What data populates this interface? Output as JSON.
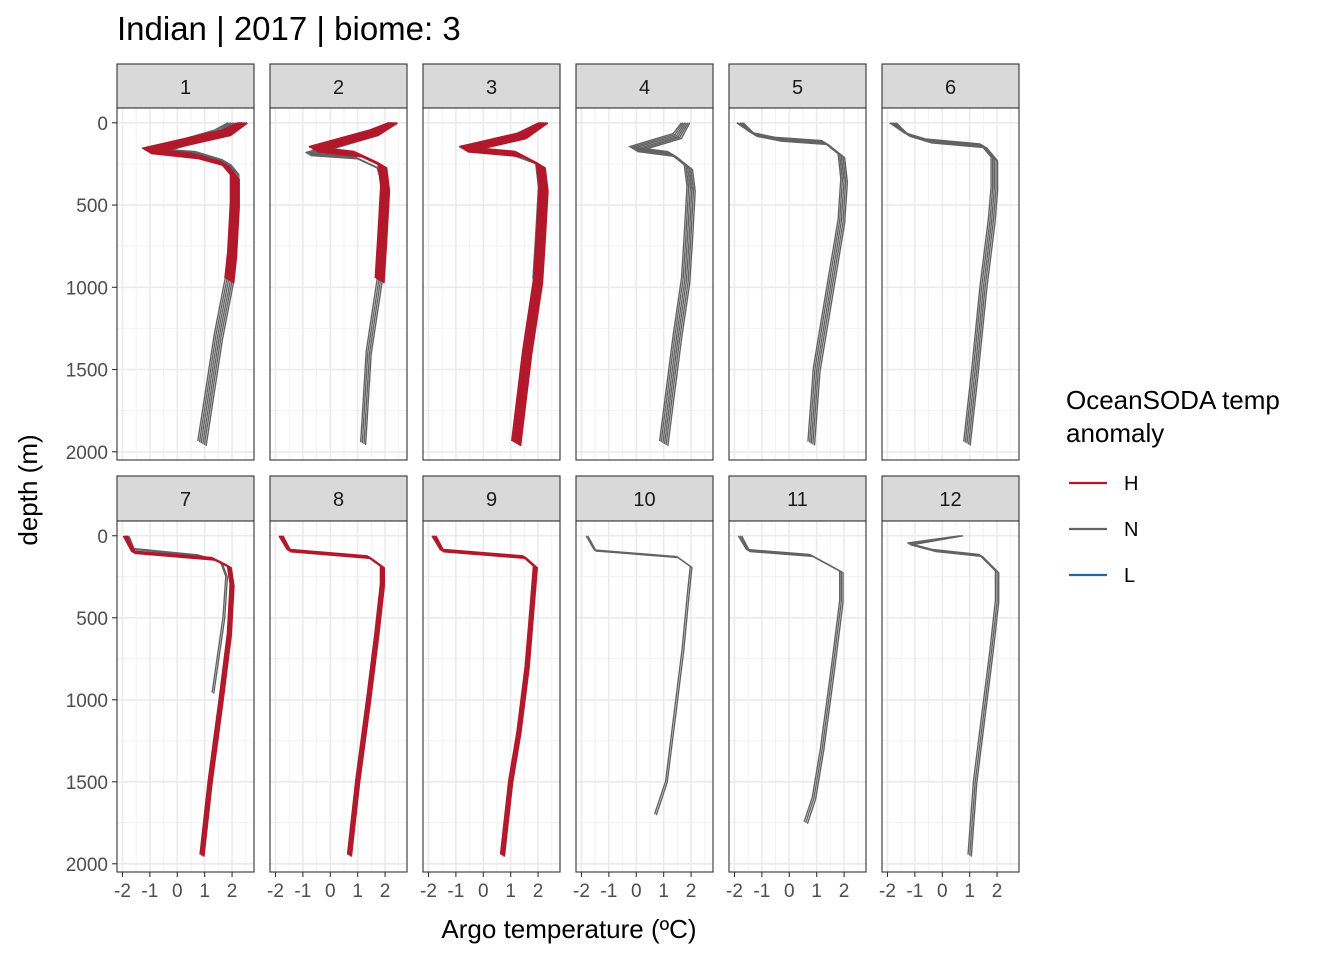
{
  "chart_data": {
    "type": "line",
    "title": "Indian | 2017 | biome: 3",
    "xlabel": "Argo temperature (ºC)",
    "ylabel": "depth (m)",
    "xlim": [
      -2.2,
      2.8
    ],
    "ylim": [
      2050,
      -90
    ],
    "y_reversed": true,
    "x_ticks": [
      -2,
      -1,
      0,
      1,
      2
    ],
    "x_tick_labels": [
      "-2",
      "-1",
      "0",
      "1",
      "2"
    ],
    "y_ticks": [
      0,
      500,
      1000,
      1500,
      2000
    ],
    "y_tick_labels": [
      "0",
      "500",
      "1000",
      "1500",
      "2000"
    ],
    "grid": true,
    "legend": {
      "title": [
        "OceanSODA temp",
        "anomaly"
      ],
      "placement": "right",
      "entries": [
        {
          "label": "H",
          "color": "#b2182b"
        },
        {
          "label": "N",
          "color": "#636363"
        },
        {
          "label": "L",
          "color": "#2166ac"
        }
      ]
    },
    "colors": {
      "H": "#b2182b",
      "N": "#636363",
      "L": "#2166ac"
    },
    "panels": [
      {
        "label": "1",
        "series": [
          {
            "anomaly": "N",
            "count": 10,
            "points": [
              [
                2.0,
                0
              ],
              [
                1.5,
                60
              ],
              [
                -0.8,
                170
              ],
              [
                0.8,
                190
              ],
              [
                1.8,
                240
              ],
              [
                2.1,
                300
              ],
              [
                2.1,
                500
              ],
              [
                2.0,
                800
              ],
              [
                1.9,
                960
              ],
              [
                1.5,
                1300
              ],
              [
                0.9,
                1950
              ]
            ]
          },
          {
            "anomaly": "H",
            "count": 9,
            "points": [
              [
                2.4,
                0
              ],
              [
                1.8,
                60
              ],
              [
                -1.1,
                170
              ],
              [
                0.6,
                200
              ],
              [
                1.7,
                250
              ],
              [
                2.1,
                330
              ],
              [
                2.1,
                500
              ],
              [
                2.0,
                800
              ],
              [
                1.9,
                960
              ]
            ]
          }
        ]
      },
      {
        "label": "2",
        "series": [
          {
            "anomaly": "N",
            "count": 4,
            "points": [
              [
                2.2,
                0
              ],
              [
                1.6,
                70
              ],
              [
                -0.8,
                190
              ],
              [
                0.9,
                210
              ],
              [
                1.8,
                280
              ],
              [
                2.0,
                400
              ],
              [
                1.9,
                700
              ],
              [
                1.8,
                960
              ],
              [
                1.4,
                1400
              ],
              [
                1.2,
                1950
              ]
            ]
          },
          {
            "anomaly": "H",
            "count": 6,
            "points": [
              [
                2.3,
                0
              ],
              [
                1.6,
                60
              ],
              [
                -0.6,
                160
              ],
              [
                1.0,
                190
              ],
              [
                1.9,
                260
              ],
              [
                2.0,
                400
              ],
              [
                1.9,
                700
              ],
              [
                1.8,
                960
              ]
            ]
          }
        ]
      },
      {
        "label": "3",
        "series": [
          {
            "anomaly": "N",
            "count": 4,
            "points": [
              [
                2.2,
                0
              ],
              [
                1.5,
                80
              ],
              [
                -0.7,
                150
              ],
              [
                1.0,
                190
              ],
              [
                2.0,
                250
              ],
              [
                2.1,
                400
              ],
              [
                2.0,
                700
              ],
              [
                1.9,
                960
              ]
            ]
          },
          {
            "anomaly": "H",
            "count": 12,
            "points": [
              [
                2.2,
                0
              ],
              [
                1.4,
                80
              ],
              [
                -0.7,
                160
              ],
              [
                1.3,
                190
              ],
              [
                2.1,
                260
              ],
              [
                2.2,
                400
              ],
              [
                2.1,
                700
              ],
              [
                2.0,
                960
              ],
              [
                1.6,
                1400
              ],
              [
                1.2,
                1950
              ]
            ]
          }
        ]
      },
      {
        "label": "4",
        "series": [
          {
            "anomaly": "N",
            "count": 12,
            "points": [
              [
                1.8,
                0
              ],
              [
                1.5,
                80
              ],
              [
                -0.1,
                160
              ],
              [
                1.3,
                190
              ],
              [
                1.9,
                270
              ],
              [
                2.0,
                400
              ],
              [
                1.9,
                700
              ],
              [
                1.8,
                960
              ],
              [
                1.5,
                1300
              ],
              [
                1.0,
                1950
              ]
            ]
          }
        ]
      },
      {
        "label": "5",
        "series": [
          {
            "anomaly": "N",
            "count": 5,
            "points": [
              [
                -1.8,
                0
              ],
              [
                -1.3,
                70
              ],
              [
                -0.4,
                100
              ],
              [
                1.3,
                120
              ],
              [
                1.9,
                200
              ],
              [
                2.0,
                350
              ],
              [
                1.9,
                600
              ],
              [
                1.5,
                1000
              ],
              [
                1.0,
                1500
              ],
              [
                0.8,
                1950
              ]
            ]
          }
        ]
      },
      {
        "label": "6",
        "series": [
          {
            "anomaly": "N",
            "count": 5,
            "points": [
              [
                -1.8,
                0
              ],
              [
                -1.3,
                70
              ],
              [
                -0.5,
                110
              ],
              [
                1.5,
                140
              ],
              [
                1.9,
                220
              ],
              [
                1.9,
                400
              ],
              [
                1.8,
                600
              ],
              [
                1.5,
                1000
              ],
              [
                1.2,
                1500
              ],
              [
                0.9,
                1950
              ]
            ]
          }
        ]
      },
      {
        "label": "7",
        "series": [
          {
            "anomaly": "N",
            "count": 2,
            "points": [
              [
                -1.8,
                0
              ],
              [
                -1.6,
                80
              ],
              [
                0.8,
                120
              ],
              [
                1.6,
                160
              ],
              [
                1.8,
                250
              ],
              [
                1.7,
                500
              ],
              [
                1.3,
                960
              ]
            ]
          },
          {
            "anomaly": "H",
            "count": 3,
            "points": [
              [
                -1.9,
                0
              ],
              [
                -1.6,
                100
              ],
              [
                1.3,
                140
              ],
              [
                1.9,
                190
              ],
              [
                2.0,
                300
              ],
              [
                1.9,
                600
              ],
              [
                1.6,
                1000
              ],
              [
                1.2,
                1500
              ],
              [
                0.9,
                1950
              ]
            ]
          }
        ]
      },
      {
        "label": "8",
        "series": [
          {
            "anomaly": "H",
            "count": 3,
            "points": [
              [
                -1.8,
                0
              ],
              [
                -1.5,
                90
              ],
              [
                1.4,
                130
              ],
              [
                1.9,
                190
              ],
              [
                1.9,
                300
              ],
              [
                1.7,
                600
              ],
              [
                1.4,
                1000
              ],
              [
                1.0,
                1500
              ],
              [
                0.7,
                1950
              ]
            ]
          }
        ]
      },
      {
        "label": "9",
        "series": [
          {
            "anomaly": "H",
            "count": 3,
            "points": [
              [
                -1.8,
                0
              ],
              [
                -1.5,
                90
              ],
              [
                1.5,
                130
              ],
              [
                1.9,
                190
              ],
              [
                1.8,
                400
              ],
              [
                1.6,
                800
              ],
              [
                1.3,
                1200
              ],
              [
                1.0,
                1500
              ],
              [
                0.7,
                1950
              ]
            ]
          }
        ]
      },
      {
        "label": "10",
        "series": [
          {
            "anomaly": "N",
            "count": 2,
            "points": [
              [
                -1.8,
                0
              ],
              [
                -1.5,
                90
              ],
              [
                1.5,
                130
              ],
              [
                2.0,
                190
              ],
              [
                1.9,
                350
              ],
              [
                1.7,
                700
              ],
              [
                1.4,
                1100
              ],
              [
                1.1,
                1500
              ],
              [
                0.7,
                1700
              ]
            ]
          }
        ]
      },
      {
        "label": "11",
        "series": [
          {
            "anomaly": "N",
            "count": 3,
            "points": [
              [
                -1.8,
                0
              ],
              [
                -1.5,
                90
              ],
              [
                0.8,
                120
              ],
              [
                1.9,
                220
              ],
              [
                1.9,
                400
              ],
              [
                1.6,
                800
              ],
              [
                1.2,
                1300
              ],
              [
                0.9,
                1600
              ],
              [
                0.6,
                1750
              ]
            ]
          }
        ]
      },
      {
        "label": "12",
        "series": [
          {
            "anomaly": "N",
            "count": 3,
            "points": [
              [
                0.7,
                0
              ],
              [
                -1.2,
                50
              ],
              [
                -0.3,
                90
              ],
              [
                1.4,
                120
              ],
              [
                2.0,
                220
              ],
              [
                2.0,
                400
              ],
              [
                1.8,
                700
              ],
              [
                1.5,
                1100
              ],
              [
                1.2,
                1500
              ],
              [
                1.0,
                1950
              ]
            ]
          }
        ]
      }
    ]
  }
}
